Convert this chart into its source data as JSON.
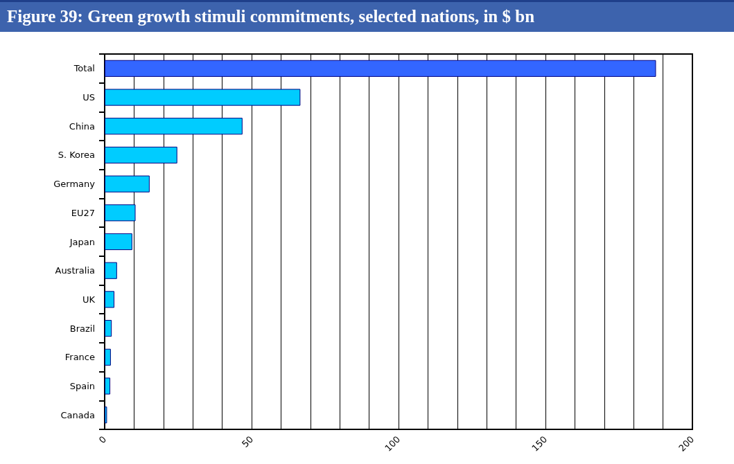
{
  "chart_data": {
    "type": "bar",
    "orientation": "horizontal",
    "title": "Figure 39:  Green growth stimuli commitments, selected nations, in $ bn",
    "categories": [
      "Total",
      "US",
      "China",
      "S. Korea",
      "Germany",
      "EU27",
      "Japan",
      "Australia",
      "UK",
      "Brazil",
      "France",
      "Spain",
      "Canada"
    ],
    "values": [
      187.6,
      66.6,
      46.9,
      24.7,
      15.3,
      10.5,
      9.4,
      4.2,
      3.3,
      2.4,
      2.1,
      1.9,
      0.8
    ],
    "colors": [
      "#3366ff",
      "#00ccff",
      "#00ccff",
      "#00ccff",
      "#00ccff",
      "#00ccff",
      "#00ccff",
      "#00ccff",
      "#00ccff",
      "#00ccff",
      "#00ccff",
      "#00ccff",
      "#00ccff"
    ],
    "xlim": [
      0,
      200
    ],
    "xticks": [
      0,
      {
        "value": 10,
        "label": null
      },
      {
        "value": 20,
        "label": null
      },
      {
        "value": 30,
        "label": null
      },
      {
        "value": 40,
        "label": null
      },
      50,
      {
        "value": 60,
        "label": null
      },
      {
        "value": 70,
        "label": null
      },
      {
        "value": 80,
        "label": null
      },
      {
        "value": 90,
        "label": null
      },
      100,
      {
        "value": 110,
        "label": null
      },
      {
        "value": 120,
        "label": null
      },
      {
        "value": 130,
        "label": null
      },
      {
        "value": 140,
        "label": null
      },
      150,
      {
        "value": 160,
        "label": null
      },
      {
        "value": 170,
        "label": null
      },
      {
        "value": 180,
        "label": null
      },
      {
        "value": 190,
        "label": null
      },
      200
    ],
    "grid": "x"
  }
}
